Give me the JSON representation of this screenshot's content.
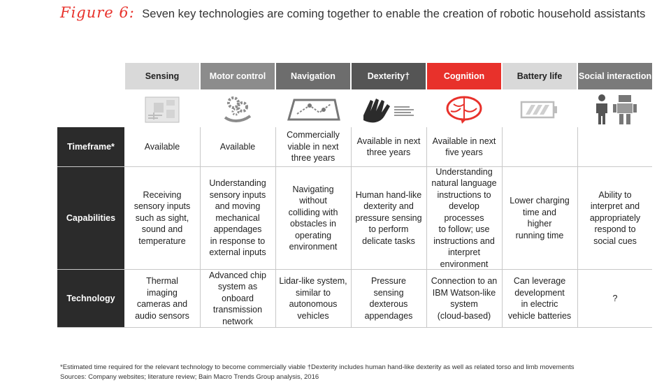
{
  "figure": {
    "label": "Figure 6:",
    "title": "Seven key technologies are coming together to enable the creation of robotic household assistants"
  },
  "columns": [
    {
      "name": "Sensing",
      "bg": "#d9d9d9",
      "fg": "#222222",
      "icon": "circuit-board-icon"
    },
    {
      "name": "Motor control",
      "bg": "#8c8c8c",
      "fg": "#ffffff",
      "icon": "gears-hand-icon"
    },
    {
      "name": "Navigation",
      "bg": "#6d6d6d",
      "fg": "#ffffff",
      "icon": "map-tablet-icon"
    },
    {
      "name": "Dexterity†",
      "bg": "#555555",
      "fg": "#ffffff",
      "icon": "robotic-hand-icon"
    },
    {
      "name": "Cognition",
      "bg": "#e8312b",
      "fg": "#ffffff",
      "icon": "brain-icon"
    },
    {
      "name": "Battery life",
      "bg": "#d9d9d9",
      "fg": "#222222",
      "icon": "battery-icon"
    },
    {
      "name": "Social interaction",
      "bg": "#7a7a7a",
      "fg": "#ffffff",
      "icon": "person-robot-icon"
    }
  ],
  "rows": [
    {
      "label": "Timeframe*",
      "cells": [
        "Available",
        "Available",
        "Commercially\nviable in next\nthree years",
        "Available in next\nthree years",
        "Available in next\nfive years",
        "",
        ""
      ]
    },
    {
      "label": "Capabilities",
      "cells": [
        "Receiving\nsensory inputs\nsuch as sight,\nsound and\ntemperature",
        "Understanding\nsensory inputs\nand moving\nmechanical\nappendages\nin response to\nexternal inputs",
        "Navigating\nwithout\ncolliding with\nobstacles in\noperating\nenvironment",
        "Human hand-like\ndexterity and\npressure sensing\nto perform\ndelicate tasks",
        "Understanding\nnatural language\ninstructions to\ndevelop processes\nto follow; use\ninstructions and\ninterpret\nenvironment",
        "Lower charging\ntime and\nhigher\nrunning time",
        "Ability to\ninterpret and\nappropriately\nrespond to\nsocial cues"
      ]
    },
    {
      "label": "Technology",
      "cells": [
        "Thermal\nimaging\ncameras and\naudio sensors",
        "Advanced chip\nsystem as onboard\ntransmission\nnetwork",
        "Lidar-like system,\nsimilar to\nautonomous\nvehicles",
        "Pressure\nsensing\ndexterous\nappendages",
        "Connection to an\nIBM Watson-like\nsystem\n(cloud-based)",
        "Can leverage\ndevelopment\nin electric\nvehicle batteries",
        "?"
      ]
    }
  ],
  "footnotes": {
    "note": "*Estimated time required for the relevant technology to become commercially viable †Dexterity includes human hand-like dexterity as well as related torso and limb movements",
    "sources": "Sources: Company websites; literature review; Bain Macro Trends Group analysis, 2016"
  }
}
